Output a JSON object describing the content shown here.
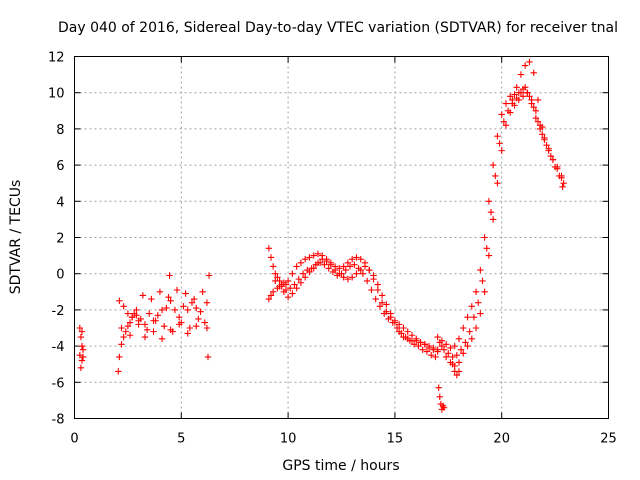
{
  "chart_data": {
    "type": "scatter",
    "title": "Day 040 of 2016, Sidereal Day-to-day VTEC variation (SDTVAR) for receiver tnal",
    "xlabel": "GPS time / hours",
    "ylabel": "SDTVAR / TECUs",
    "xlim": [
      0,
      25
    ],
    "ylim": [
      -8,
      12
    ],
    "xticks": [
      0,
      5,
      10,
      15,
      20,
      25
    ],
    "yticks": [
      -8,
      -6,
      -4,
      -2,
      0,
      2,
      4,
      6,
      8,
      10,
      12
    ],
    "grid": true,
    "marker": "+",
    "color": "#ff0000",
    "series": [
      {
        "name": "SDTVAR",
        "x": [
          0.25,
          0.25,
          0.3,
          0.3,
          0.35,
          0.35,
          0.35,
          0.4,
          0.4,
          2.05,
          2.1,
          2.2,
          2.3,
          2.4,
          2.5,
          2.6,
          2.7,
          2.8,
          2.9,
          3.0,
          2.1,
          2.3,
          2.5,
          2.7,
          2.9,
          3.1,
          3.3,
          3.5,
          3.7,
          3.9,
          4.1,
          4.3,
          4.5,
          4.7,
          4.9,
          5.1,
          5.3,
          5.5,
          5.7,
          5.9,
          2.2,
          2.6,
          3.0,
          3.4,
          3.8,
          4.2,
          4.6,
          5.0,
          5.4,
          5.8,
          3.2,
          3.6,
          4.0,
          4.4,
          4.8,
          5.2,
          5.6,
          6.0,
          3.3,
          3.7,
          4.1,
          4.5,
          4.45,
          4.9,
          5.3,
          5.7,
          6.1,
          6.2,
          6.2,
          6.25,
          6.3,
          9.1,
          9.2,
          9.3,
          9.4,
          9.5,
          9.6,
          9.7,
          9.8,
          9.9,
          10.0,
          10.2,
          10.4,
          10.6,
          10.8,
          11.0,
          11.2,
          11.4,
          11.6,
          11.8,
          12.0,
          12.2,
          12.4,
          12.6,
          12.8,
          13.0,
          13.2,
          13.4,
          13.6,
          13.8,
          14.0,
          14.2,
          14.4,
          14.6,
          14.8,
          15.0,
          15.2,
          15.4,
          15.6,
          15.8,
          16.0,
          16.2,
          16.4,
          16.6,
          16.8,
          17.0,
          9.1,
          9.2,
          9.3,
          9.5,
          9.7,
          9.9,
          10.1,
          10.3,
          10.5,
          10.7,
          10.9,
          11.1,
          11.3,
          11.5,
          11.7,
          11.9,
          12.1,
          12.3,
          12.5,
          12.7,
          12.9,
          13.1,
          13.3,
          13.5,
          13.7,
          13.9,
          14.1,
          14.3,
          14.5,
          14.7,
          14.9,
          15.1,
          15.3,
          15.5,
          15.7,
          15.9,
          16.1,
          16.3,
          16.5,
          16.7,
          16.9,
          9.4,
          9.6,
          9.8,
          10.0,
          10.2,
          10.4,
          10.6,
          10.8,
          11.0,
          11.2,
          11.4,
          11.6,
          11.8,
          12.0,
          12.2,
          12.4,
          12.6,
          12.8,
          13.0,
          13.2,
          13.4,
          13.6,
          13.8,
          14.0,
          14.2,
          14.4,
          14.6,
          14.8,
          15.0,
          15.2,
          15.4,
          15.6,
          15.8,
          16.0,
          16.2,
          16.4,
          16.6,
          16.8,
          17.0,
          17.05,
          17.1,
          17.15,
          17.2,
          17.25,
          17.3,
          17.0,
          17.2,
          17.4,
          17.6,
          17.8,
          18.0,
          18.2,
          18.4,
          18.6,
          18.8,
          19.0,
          19.2,
          19.4,
          19.6,
          19.8,
          20.0,
          20.2,
          20.4,
          20.6,
          20.8,
          21.0,
          21.2,
          21.4,
          21.6,
          21.8,
          22.0,
          22.2,
          22.4,
          22.6,
          22.8,
          22.9,
          17.1,
          17.3,
          17.5,
          17.7,
          17.9,
          18.1,
          18.3,
          18.5,
          18.7,
          18.9,
          19.1,
          19.3,
          19.5,
          19.7,
          19.9,
          20.1,
          20.3,
          20.5,
          20.7,
          20.9,
          21.1,
          21.3,
          21.5,
          21.7,
          21.9,
          22.1,
          22.3,
          22.5,
          22.7,
          22.85,
          17.2,
          17.4,
          17.6,
          17.8,
          18.0,
          18.2,
          18.4,
          18.6,
          18.8,
          19.0,
          19.2,
          19.4,
          19.6,
          19.8,
          20.0,
          20.2,
          20.4,
          20.6,
          20.8,
          21.0,
          21.2,
          21.4,
          21.6,
          21.8,
          22.0,
          22.2,
          22.4,
          22.6,
          22.8,
          17.7,
          17.8,
          17.9,
          18.0,
          20.5,
          20.7,
          20.9,
          21.1,
          21.3,
          21.5,
          21.7,
          21.9
        ],
        "y": [
          -3.0,
          -4.5,
          -3.5,
          -5.2,
          -4.0,
          -4.8,
          -3.2,
          -4.6,
          -4.2,
          -5.4,
          -4.6,
          -3.9,
          -3.5,
          -3.2,
          -2.9,
          -2.7,
          -2.4,
          -2.2,
          -2.3,
          -2.6,
          -1.5,
          -1.8,
          -2.2,
          -2.4,
          -2.0,
          -2.5,
          -2.8,
          -2.2,
          -2.6,
          -2.3,
          -2.0,
          -1.9,
          -1.5,
          -2.0,
          -2.4,
          -1.8,
          -2.0,
          -1.6,
          -1.9,
          -2.1,
          -3.0,
          -3.4,
          -2.8,
          -3.1,
          -2.6,
          -2.9,
          -3.2,
          -2.7,
          -3.0,
          -2.5,
          -1.2,
          -1.4,
          -1.0,
          -1.3,
          -0.9,
          -1.1,
          -1.4,
          -1.0,
          -3.5,
          -3.2,
          -3.6,
          -3.1,
          -0.1,
          -2.8,
          -3.3,
          -2.9,
          -2.7,
          -1.6,
          -3.0,
          -4.6,
          -0.1,
          1.4,
          0.9,
          0.4,
          0.0,
          -0.2,
          -0.4,
          -0.6,
          -0.5,
          -0.6,
          -0.4,
          0.0,
          0.4,
          0.6,
          0.8,
          0.9,
          1.0,
          1.1,
          1.0,
          0.8,
          0.6,
          0.4,
          0.3,
          0.4,
          0.6,
          0.8,
          0.9,
          0.8,
          0.6,
          0.2,
          -0.3,
          -0.9,
          -1.6,
          -2.1,
          -2.4,
          -2.6,
          -2.8,
          -3.0,
          -3.2,
          -3.4,
          -3.6,
          -3.8,
          -3.9,
          -4.1,
          -4.2,
          -4.3,
          -1.4,
          -1.2,
          -1.0,
          -0.8,
          -0.7,
          -0.9,
          -0.8,
          -0.6,
          -0.3,
          0.0,
          0.2,
          0.3,
          0.5,
          0.6,
          0.5,
          0.3,
          0.1,
          -0.1,
          0.0,
          0.2,
          0.4,
          0.5,
          0.3,
          0.0,
          -0.4,
          -0.9,
          -1.4,
          -1.8,
          -2.2,
          -2.5,
          -2.7,
          -3.0,
          -3.3,
          -3.5,
          -3.7,
          -3.9,
          -4.0,
          -4.2,
          -4.3,
          -4.5,
          -4.6,
          -0.4,
          -0.7,
          -1.0,
          -1.3,
          -1.1,
          -0.8,
          -0.5,
          -0.2,
          0.1,
          0.3,
          0.6,
          0.8,
          0.7,
          0.5,
          0.2,
          0.0,
          -0.2,
          -0.3,
          -0.2,
          0.0,
          0.2,
          0.4,
          0.2,
          -0.1,
          -0.6,
          -1.2,
          -1.7,
          -2.2,
          -2.7,
          -3.2,
          -3.5,
          -3.6,
          -3.7,
          -3.7,
          -3.8,
          -3.9,
          -4.0,
          -4.1,
          -4.2,
          -6.3,
          -6.8,
          -7.2,
          -7.5,
          -7.3,
          -7.4,
          -3.5,
          -3.7,
          -3.9,
          -4.1,
          -4.0,
          -3.6,
          -3.0,
          -2.4,
          -1.8,
          -1.0,
          0.2,
          2.0,
          4.0,
          6.0,
          7.6,
          8.8,
          9.4,
          9.8,
          9.9,
          10.0,
          10.2,
          10.0,
          9.4,
          8.6,
          8.0,
          7.4,
          6.8,
          6.3,
          5.9,
          5.4,
          5.0,
          -3.8,
          -4.2,
          -4.4,
          -4.6,
          -4.5,
          -4.2,
          -3.8,
          -3.2,
          -2.4,
          -1.6,
          -0.4,
          1.4,
          3.4,
          5.4,
          7.2,
          8.4,
          9.0,
          9.4,
          9.7,
          10.0,
          10.3,
          9.8,
          9.2,
          8.4,
          7.7,
          7.1,
          6.5,
          5.9,
          5.4,
          4.8,
          -4.0,
          -4.6,
          -4.9,
          -5.1,
          -4.9,
          -4.4,
          -4.0,
          -3.6,
          -3.0,
          -2.2,
          -1.0,
          1.0,
          3.0,
          5.0,
          6.8,
          8.2,
          8.9,
          9.3,
          9.6,
          9.8,
          10.0,
          9.6,
          9.0,
          8.2,
          7.5,
          6.9,
          6.3,
          5.8,
          5.3,
          -5.0,
          -5.4,
          -5.6,
          -5.4,
          9.6,
          10.3,
          11.0,
          11.5,
          11.7,
          11.1,
          9.6,
          8.1
        ]
      }
    ]
  }
}
